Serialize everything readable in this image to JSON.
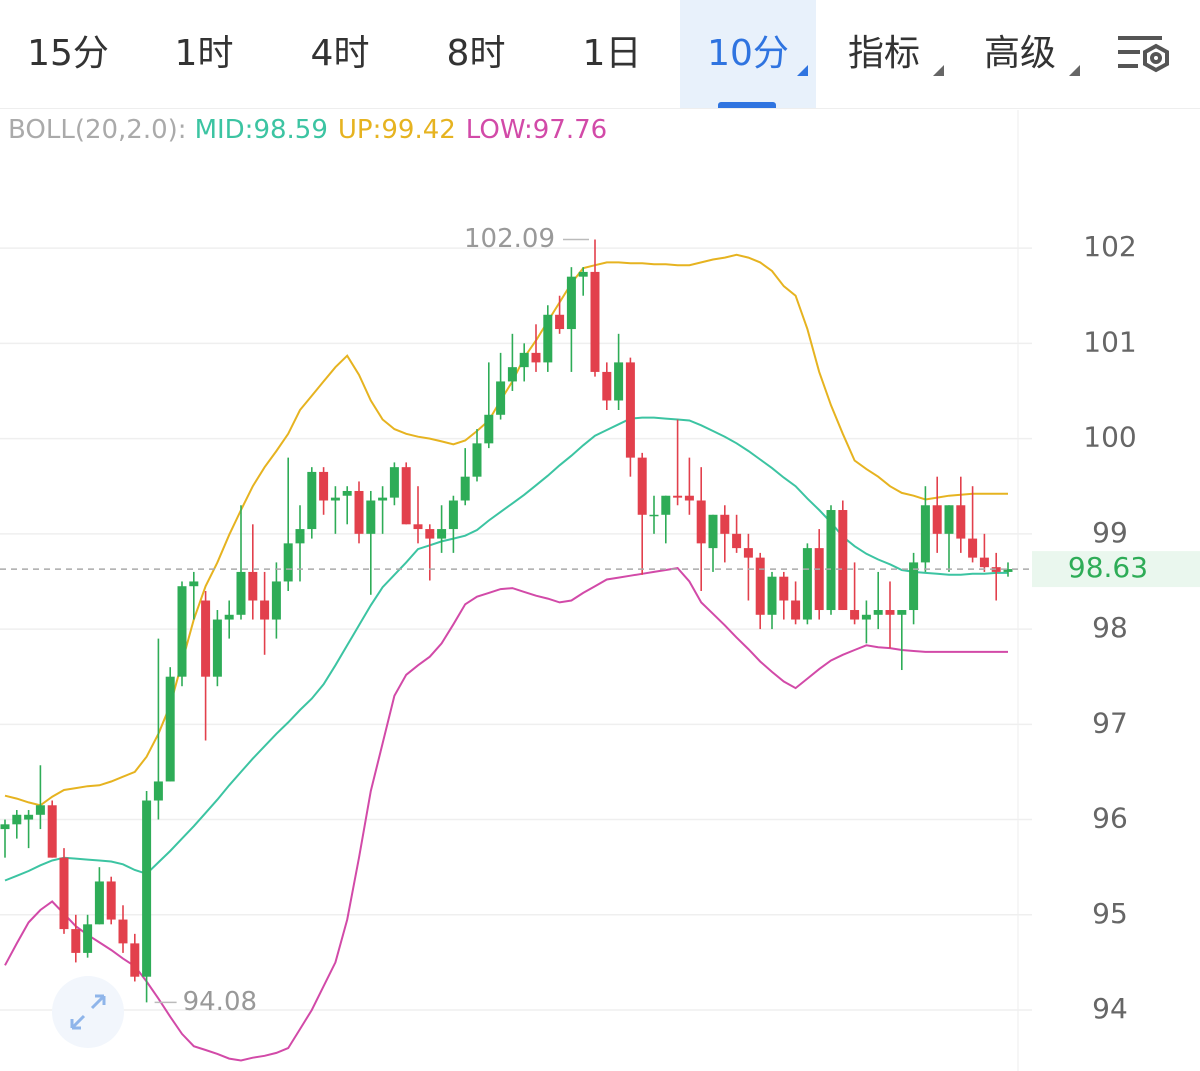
{
  "tabs": {
    "items": [
      "15分",
      "1时",
      "4时",
      "8时",
      "1日",
      "10分",
      "指标",
      "高级"
    ],
    "active": 5
  },
  "chart_data": {
    "type": "candlestick",
    "indicator": "BOLL(20,2.0):",
    "up_color": "#2eac57",
    "down_color": "#e2404c",
    "ylim": [
      93.36,
      103.45
    ],
    "yticks": [
      94,
      95,
      96,
      97,
      98,
      99,
      100,
      101,
      102
    ],
    "grid": true,
    "open": [
      95.9,
      95.95,
      96.0,
      96.05,
      96.15,
      95.6,
      94.85,
      94.6,
      94.9,
      95.35,
      94.95,
      94.7,
      94.35,
      96.2,
      96.4,
      97.5,
      98.45,
      98.3,
      97.5,
      98.1,
      98.15,
      98.6,
      98.3,
      98.1,
      98.5,
      98.9,
      99.05,
      99.65,
      99.35,
      99.4,
      99.45,
      99.0,
      99.35,
      99.38,
      99.7,
      99.1,
      99.05,
      98.95,
      99.05,
      99.35,
      99.6,
      99.95,
      100.25,
      100.6,
      100.75,
      100.9,
      100.8,
      101.3,
      101.15,
      101.7,
      101.75,
      100.7,
      100.4,
      100.8,
      99.8,
      99.2,
      99.2,
      99.4,
      99.4,
      99.35,
      98.85,
      99.2,
      99.0,
      98.85,
      98.75,
      98.15,
      98.55,
      98.3,
      98.1,
      98.85,
      98.2,
      99.25,
      98.2,
      98.1,
      98.15,
      98.2,
      98.15,
      98.2,
      98.7,
      99.3,
      99.0,
      99.3,
      98.95,
      98.75,
      98.65,
      98.6
    ],
    "high": [
      96.0,
      96.1,
      96.1,
      96.57,
      96.2,
      95.7,
      95.0,
      95.0,
      95.5,
      95.4,
      95.1,
      94.8,
      96.3,
      97.9,
      97.6,
      98.5,
      98.6,
      98.4,
      98.2,
      98.3,
      99.3,
      99.1,
      98.6,
      98.7,
      99.8,
      99.3,
      99.7,
      99.7,
      99.5,
      99.5,
      99.55,
      99.45,
      99.5,
      99.75,
      99.75,
      99.5,
      99.1,
      99.3,
      99.4,
      99.9,
      100.1,
      100.8,
      100.9,
      101.1,
      101.0,
      101.2,
      101.4,
      101.5,
      101.8,
      101.8,
      102.09,
      100.8,
      101.1,
      100.85,
      99.85,
      99.4,
      99.4,
      100.2,
      99.8,
      99.7,
      99.2,
      99.3,
      99.2,
      99.0,
      98.8,
      98.6,
      98.6,
      98.5,
      98.9,
      99.05,
      99.3,
      99.35,
      98.7,
      98.3,
      98.6,
      98.5,
      98.2,
      98.8,
      99.5,
      99.6,
      99.3,
      99.6,
      99.5,
      99.0,
      98.8,
      98.7
    ],
    "low": [
      95.6,
      95.8,
      95.7,
      95.9,
      95.6,
      94.8,
      94.5,
      94.55,
      94.9,
      94.9,
      94.6,
      94.3,
      94.08,
      96.0,
      96.4,
      97.4,
      98.1,
      96.83,
      97.4,
      97.9,
      98.1,
      98.1,
      97.73,
      97.9,
      98.4,
      98.5,
      98.95,
      99.2,
      99.0,
      99.1,
      98.9,
      98.36,
      99.0,
      99.3,
      99.1,
      98.9,
      98.51,
      98.8,
      98.8,
      99.3,
      99.55,
      99.9,
      100.2,
      100.5,
      100.6,
      100.7,
      100.7,
      101.1,
      100.7,
      101.5,
      100.65,
      100.3,
      100.3,
      99.6,
      98.57,
      99.0,
      98.9,
      99.3,
      99.2,
      98.4,
      98.6,
      98.7,
      98.8,
      98.3,
      98.0,
      98.0,
      98.1,
      98.05,
      98.05,
      98.1,
      98.15,
      98.2,
      98.05,
      97.85,
      98.0,
      97.8,
      97.57,
      98.05,
      98.6,
      98.8,
      98.6,
      98.8,
      98.7,
      98.6,
      98.3,
      98.55
    ],
    "close": [
      95.95,
      96.05,
      96.05,
      96.15,
      95.6,
      94.85,
      94.6,
      94.9,
      95.35,
      94.95,
      94.7,
      94.35,
      96.2,
      96.4,
      97.5,
      98.45,
      98.5,
      97.5,
      98.1,
      98.15,
      98.6,
      98.3,
      98.1,
      98.5,
      98.9,
      99.05,
      99.65,
      99.35,
      99.38,
      99.45,
      99.0,
      99.35,
      99.38,
      99.7,
      99.1,
      99.05,
      98.95,
      99.05,
      99.35,
      99.6,
      99.95,
      100.25,
      100.6,
      100.75,
      100.9,
      100.8,
      101.3,
      101.15,
      101.7,
      101.75,
      100.7,
      100.4,
      100.8,
      99.8,
      99.2,
      99.2,
      99.4,
      99.38,
      99.35,
      98.9,
      99.2,
      99.0,
      98.85,
      98.75,
      98.15,
      98.55,
      98.3,
      98.1,
      98.85,
      98.2,
      99.25,
      98.2,
      98.1,
      98.15,
      98.2,
      98.15,
      98.2,
      98.7,
      99.3,
      99.0,
      99.3,
      98.95,
      98.75,
      98.65,
      98.6,
      98.63
    ],
    "series": [
      {
        "name": "MID:",
        "color": "#3cc4a2",
        "values": [
          95.36,
          95.41,
          95.46,
          95.52,
          95.57,
          95.6,
          95.59,
          95.58,
          95.57,
          95.56,
          95.53,
          95.47,
          95.43,
          95.55,
          95.67,
          95.8,
          95.93,
          96.07,
          96.21,
          96.36,
          96.5,
          96.64,
          96.77,
          96.9,
          97.02,
          97.15,
          97.27,
          97.42,
          97.62,
          97.83,
          98.04,
          98.25,
          98.44,
          98.57,
          98.7,
          98.84,
          98.88,
          98.92,
          98.95,
          98.98,
          99.04,
          99.14,
          99.23,
          99.32,
          99.41,
          99.51,
          99.61,
          99.72,
          99.82,
          99.93,
          100.03,
          100.09,
          100.15,
          100.21,
          100.22,
          100.22,
          100.21,
          100.2,
          100.19,
          100.14,
          100.08,
          100.02,
          99.95,
          99.87,
          99.78,
          99.69,
          99.59,
          99.5,
          99.37,
          99.25,
          99.12,
          98.97,
          98.87,
          98.79,
          98.73,
          98.68,
          98.62,
          98.6,
          98.59,
          98.58,
          98.57,
          98.57,
          98.58,
          98.58,
          98.59,
          98.59
        ]
      },
      {
        "name": "UP:",
        "color": "#e6b320",
        "values": [
          96.25,
          96.22,
          96.18,
          96.15,
          96.24,
          96.31,
          96.33,
          96.35,
          96.36,
          96.4,
          96.45,
          96.5,
          96.66,
          96.9,
          97.2,
          97.65,
          98.1,
          98.45,
          98.7,
          98.99,
          99.25,
          99.5,
          99.7,
          99.87,
          100.05,
          100.3,
          100.45,
          100.6,
          100.75,
          100.87,
          100.67,
          100.4,
          100.2,
          100.1,
          100.05,
          100.02,
          100.0,
          99.97,
          99.94,
          99.98,
          100.08,
          100.19,
          100.4,
          100.6,
          100.85,
          101.03,
          101.23,
          101.43,
          101.63,
          101.79,
          101.82,
          101.85,
          101.85,
          101.84,
          101.84,
          101.83,
          101.83,
          101.82,
          101.82,
          101.85,
          101.88,
          101.9,
          101.93,
          101.9,
          101.85,
          101.76,
          101.6,
          101.5,
          101.15,
          100.7,
          100.35,
          100.05,
          99.77,
          99.68,
          99.6,
          99.5,
          99.43,
          99.4,
          99.36,
          99.38,
          99.4,
          99.41,
          99.42,
          99.42,
          99.42,
          99.42
        ]
      },
      {
        "name": "LOW:",
        "color": "#d24aa8",
        "values": [
          94.47,
          94.7,
          94.92,
          95.05,
          95.14,
          95.01,
          94.88,
          94.79,
          94.71,
          94.63,
          94.54,
          94.46,
          94.3,
          94.12,
          93.93,
          93.75,
          93.62,
          93.58,
          93.54,
          93.49,
          93.47,
          93.5,
          93.52,
          93.55,
          93.6,
          93.8,
          94.0,
          94.25,
          94.5,
          94.95,
          95.6,
          96.3,
          96.8,
          97.3,
          97.52,
          97.62,
          97.71,
          97.85,
          98.05,
          98.26,
          98.34,
          98.38,
          98.42,
          98.43,
          98.39,
          98.35,
          98.32,
          98.28,
          98.3,
          98.38,
          98.45,
          98.52,
          98.54,
          98.56,
          98.58,
          98.6,
          98.62,
          98.64,
          98.5,
          98.28,
          98.16,
          98.04,
          97.91,
          97.79,
          97.66,
          97.55,
          97.45,
          97.38,
          97.48,
          97.58,
          97.67,
          97.73,
          97.78,
          97.83,
          97.81,
          97.8,
          97.78,
          97.77,
          97.76,
          97.76,
          97.76,
          97.76,
          97.76,
          97.76,
          97.76,
          97.76
        ]
      }
    ]
  }
}
